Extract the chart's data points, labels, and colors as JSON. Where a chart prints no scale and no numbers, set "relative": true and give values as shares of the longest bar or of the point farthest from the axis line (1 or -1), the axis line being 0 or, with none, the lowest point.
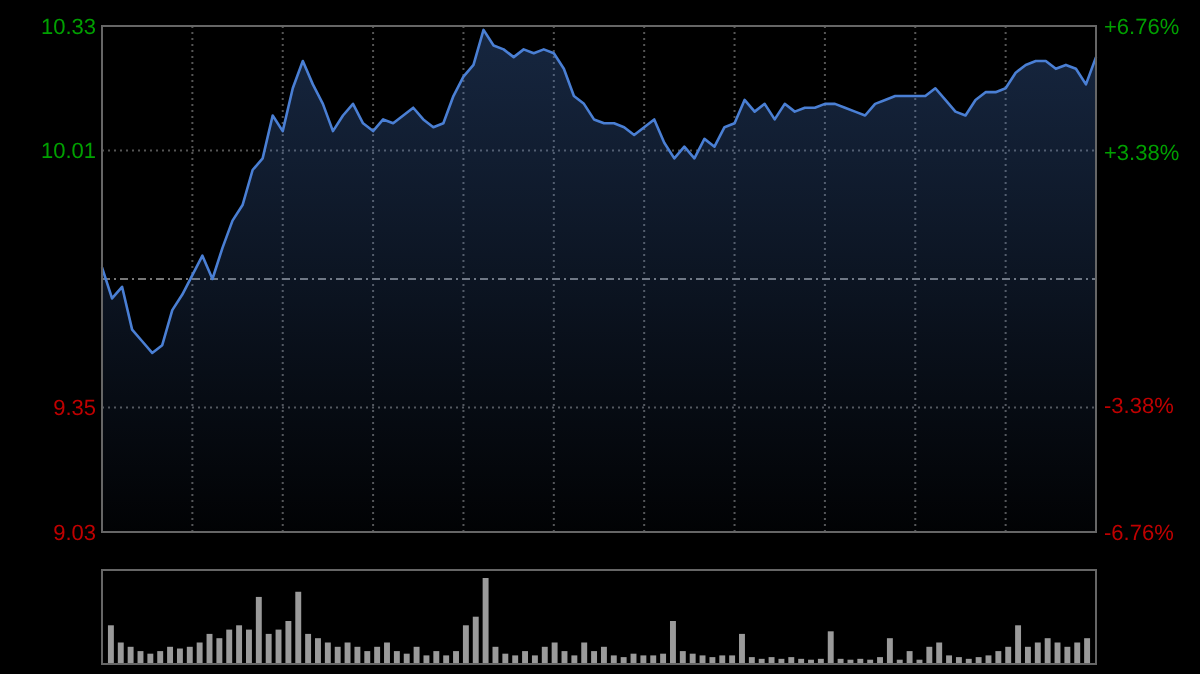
{
  "chart_data": [
    {
      "type": "area",
      "color": "#4a7fd4",
      "grid": true,
      "categories": [
        null,
        null,
        null,
        null,
        null,
        null,
        null,
        null,
        null,
        null,
        null,
        null,
        null,
        null,
        null,
        null,
        null,
        null,
        null,
        null,
        null,
        null,
        null,
        null,
        null,
        null,
        null,
        null,
        null,
        null,
        null,
        null,
        null,
        null,
        null,
        null,
        null,
        null,
        null,
        null,
        null,
        null,
        null,
        null,
        null,
        null,
        null,
        null,
        null,
        null,
        null,
        null,
        null,
        null,
        null,
        null,
        null,
        null,
        null,
        null,
        null,
        null,
        null,
        null,
        null,
        null,
        null,
        null,
        null,
        null,
        null,
        null,
        null,
        null,
        null,
        null,
        null,
        null,
        null,
        null,
        null,
        null,
        null,
        null,
        null,
        null,
        null,
        null,
        null,
        null,
        null,
        null,
        null,
        null,
        null,
        null,
        null,
        null,
        null,
        null
      ],
      "values": [
        9.71,
        9.63,
        9.66,
        9.55,
        9.52,
        9.49,
        9.51,
        9.6,
        9.64,
        9.69,
        9.74,
        9.68,
        9.76,
        9.83,
        9.87,
        9.96,
        9.99,
        10.1,
        10.06,
        10.17,
        10.24,
        10.18,
        10.13,
        10.06,
        10.1,
        10.13,
        10.08,
        10.06,
        10.09,
        10.08,
        10.1,
        10.12,
        10.09,
        10.07,
        10.08,
        10.15,
        10.2,
        10.23,
        10.32,
        10.28,
        10.27,
        10.25,
        10.27,
        10.26,
        10.27,
        10.26,
        10.22,
        10.15,
        10.13,
        10.09,
        10.08,
        10.08,
        10.07,
        10.05,
        10.07,
        10.09,
        10.03,
        9.99,
        10.02,
        9.99,
        10.04,
        10.02,
        10.07,
        10.08,
        10.14,
        10.11,
        10.13,
        10.09,
        10.13,
        10.11,
        10.12,
        10.12,
        10.13,
        10.13,
        10.12,
        10.11,
        10.1,
        10.13,
        10.14,
        10.15,
        10.15,
        10.15,
        10.15,
        10.17,
        10.14,
        10.11,
        10.1,
        10.14,
        10.16,
        10.16,
        10.17,
        10.21,
        10.23,
        10.24,
        10.24,
        10.22,
        10.23,
        10.22,
        10.18,
        10.25
      ],
      "ylim": [
        9.03,
        10.33
      ],
      "yticks": [
        10.33,
        10.01,
        9.35,
        9.03
      ],
      "ref_lines": [
        {
          "axis": "y",
          "value": 9.68,
          "color": "#777777",
          "line_style": "dashdot"
        }
      ],
      "y2lim": [
        -6.76,
        6.76
      ],
      "y2ticks": [
        {
          "value": 6.76,
          "label": "+6.76%"
        },
        {
          "value": 3.38,
          "label": "+3.38%"
        },
        {
          "value": -3.38,
          "label": "-3.38%"
        },
        {
          "value": -6.76,
          "label": "-6.76%"
        }
      ]
    },
    {
      "type": "bar",
      "color": "#9a9a9a",
      "relative": true,
      "categories": [
        null,
        null,
        null,
        null,
        null,
        null,
        null,
        null,
        null,
        null,
        null,
        null,
        null,
        null,
        null,
        null,
        null,
        null,
        null,
        null,
        null,
        null,
        null,
        null,
        null,
        null,
        null,
        null,
        null,
        null,
        null,
        null,
        null,
        null,
        null,
        null,
        null,
        null,
        null,
        null,
        null,
        null,
        null,
        null,
        null,
        null,
        null,
        null,
        null,
        null,
        null,
        null,
        null,
        null,
        null,
        null,
        null,
        null,
        null,
        null,
        null,
        null,
        null,
        null,
        null,
        null,
        null,
        null,
        null,
        null,
        null,
        null,
        null,
        null,
        null,
        null,
        null,
        null,
        null,
        null,
        null,
        null,
        null,
        null,
        null,
        null,
        null,
        null,
        null,
        null,
        null,
        null,
        null,
        null,
        null,
        null,
        null,
        null,
        null,
        null
      ],
      "values": [
        0.45,
        0.25,
        0.2,
        0.15,
        0.12,
        0.15,
        0.2,
        0.18,
        0.2,
        0.25,
        0.35,
        0.3,
        0.4,
        0.45,
        0.4,
        0.78,
        0.35,
        0.4,
        0.5,
        0.84,
        0.35,
        0.3,
        0.25,
        0.2,
        0.25,
        0.2,
        0.15,
        0.2,
        0.25,
        0.15,
        0.12,
        0.2,
        0.1,
        0.15,
        0.1,
        0.15,
        0.45,
        0.55,
        1,
        0.2,
        0.12,
        0.1,
        0.15,
        0.1,
        0.2,
        0.25,
        0.15,
        0.1,
        0.25,
        0.15,
        0.2,
        0.1,
        0.08,
        0.12,
        0.1,
        0.1,
        0.12,
        0.5,
        0.15,
        0.12,
        0.1,
        0.08,
        0.1,
        0.1,
        0.35,
        0.08,
        0.06,
        0.08,
        0.06,
        0.08,
        0.06,
        0.05,
        0.06,
        0.38,
        0.06,
        0.05,
        0.06,
        0.05,
        0.08,
        0.3,
        0.05,
        0.15,
        0.05,
        0.2,
        0.25,
        0.1,
        0.08,
        0.06,
        0.08,
        0.1,
        0.15,
        0.2,
        0.45,
        0.2,
        0.25,
        0.3,
        0.25,
        0.2,
        0.25,
        0.3
      ]
    }
  ]
}
